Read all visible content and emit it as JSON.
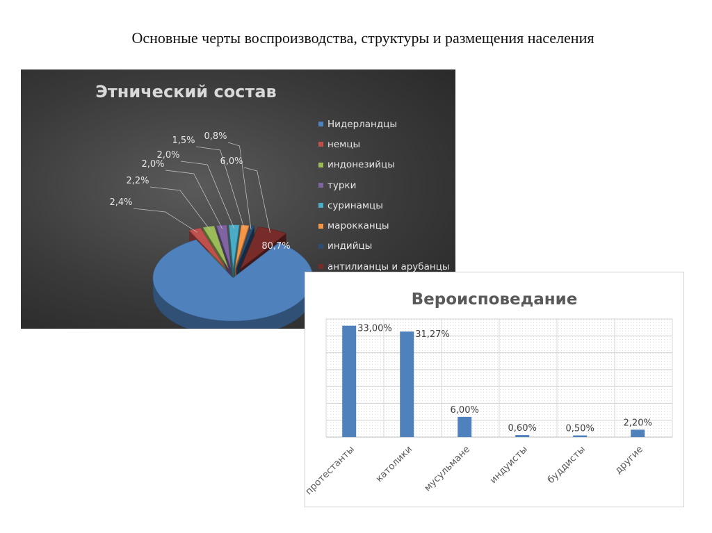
{
  "slide": {
    "title": "Основные черты воспроизводства, структуры и размещения населения"
  },
  "chart_data": [
    {
      "type": "pie",
      "title": "Этнический состав",
      "legend_placement": "right",
      "categories": [
        "Нидерландцы",
        "немцы",
        "индонезийцы",
        "турки",
        "суринамцы",
        "марокканцы",
        "индийцы",
        "антилианцы и арубанцы"
      ],
      "values": [
        80.7,
        2.4,
        2.2,
        2.0,
        2.0,
        1.5,
        0.8,
        6.0
      ],
      "data_labels": [
        "80,7%",
        "2,4%",
        "2,2%",
        "2,0%",
        "2,0%",
        "1,5%",
        "0,8%",
        "6,0%"
      ],
      "colors": [
        "#4f81bd",
        "#c0504d",
        "#9bbb59",
        "#8064a2",
        "#4bacc6",
        "#f79646",
        "#2c4d75",
        "#772c2a"
      ]
    },
    {
      "type": "bar",
      "title": "Вероисповедание",
      "categories": [
        "протестанты",
        "католики",
        "мусульмане",
        "индуисты",
        "буддисты",
        "другие"
      ],
      "values": [
        33.0,
        31.27,
        6.0,
        0.6,
        0.5,
        2.2
      ],
      "data_labels": [
        "33,00%",
        "31,27%",
        "6,00%",
        "0,60%",
        "0,50%",
        "2,20%"
      ],
      "ylim": [
        0,
        35
      ],
      "grid": true,
      "color": "#4f81bd"
    }
  ]
}
